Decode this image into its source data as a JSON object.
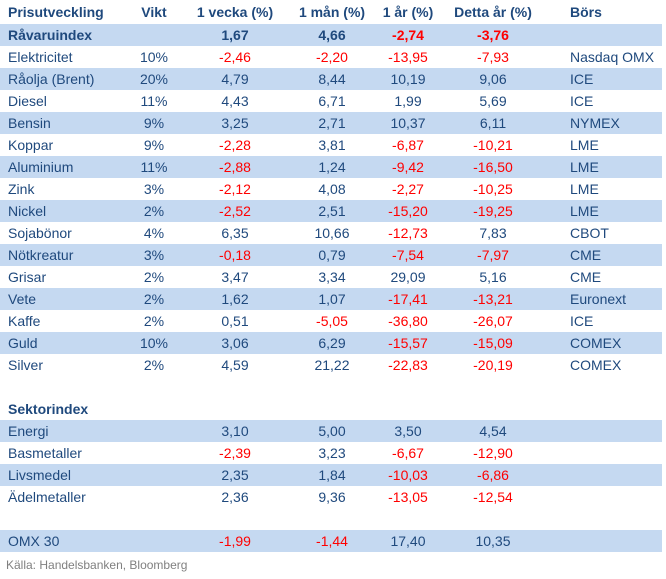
{
  "chart_data": {
    "type": "table",
    "title": "Prisutveckling",
    "columns": [
      "Prisutveckling",
      "Vikt",
      "1 vecka (%)",
      "1 mån (%)",
      "1 år (%)",
      "Detta år (%)",
      "Börs"
    ],
    "rows": [
      {
        "type": "data",
        "label": "Råvaruindex",
        "weight": "",
        "week": "1,67",
        "month": "4,66",
        "year": "-2,74",
        "ytd": "-3,76",
        "exchange": "",
        "shade": true,
        "bold": true
      },
      {
        "type": "data",
        "label": "Elektricitet",
        "weight": "10%",
        "week": "-2,46",
        "month": "-2,20",
        "year": "-13,95",
        "ytd": "-7,93",
        "exchange": "Nasdaq OMX",
        "shade": false,
        "bold": false
      },
      {
        "type": "data",
        "label": "Råolja (Brent)",
        "weight": "20%",
        "week": "4,79",
        "month": "8,44",
        "year": "10,19",
        "ytd": "9,06",
        "exchange": "ICE",
        "shade": true,
        "bold": false
      },
      {
        "type": "data",
        "label": "Diesel",
        "weight": "11%",
        "week": "4,43",
        "month": "6,71",
        "year": "1,99",
        "ytd": "5,69",
        "exchange": "ICE",
        "shade": false,
        "bold": false
      },
      {
        "type": "data",
        "label": "Bensin",
        "weight": "9%",
        "week": "3,25",
        "month": "2,71",
        "year": "10,37",
        "ytd": "6,11",
        "exchange": "NYMEX",
        "shade": true,
        "bold": false
      },
      {
        "type": "data",
        "label": "Koppar",
        "weight": "9%",
        "week": "-2,28",
        "month": "3,81",
        "year": "-6,87",
        "ytd": "-10,21",
        "exchange": "LME",
        "shade": false,
        "bold": false
      },
      {
        "type": "data",
        "label": "Aluminium",
        "weight": "11%",
        "week": "-2,88",
        "month": "1,24",
        "year": "-9,42",
        "ytd": "-16,50",
        "exchange": "LME",
        "shade": true,
        "bold": false
      },
      {
        "type": "data",
        "label": "Zink",
        "weight": "3%",
        "week": "-2,12",
        "month": "4,08",
        "year": "-2,27",
        "ytd": "-10,25",
        "exchange": "LME",
        "shade": false,
        "bold": false
      },
      {
        "type": "data",
        "label": "Nickel",
        "weight": "2%",
        "week": "-2,52",
        "month": "2,51",
        "year": "-15,20",
        "ytd": "-19,25",
        "exchange": "LME",
        "shade": true,
        "bold": false
      },
      {
        "type": "data",
        "label": "Sojabönor",
        "weight": "4%",
        "week": "6,35",
        "month": "10,66",
        "year": "-12,73",
        "ytd": "7,83",
        "exchange": "CBOT",
        "shade": false,
        "bold": false
      },
      {
        "type": "data",
        "label": "Nötkreatur",
        "weight": "3%",
        "week": "-0,18",
        "month": "0,79",
        "year": "-7,54",
        "ytd": "-7,97",
        "exchange": "CME",
        "shade": true,
        "bold": false
      },
      {
        "type": "data",
        "label": "Grisar",
        "weight": "2%",
        "week": "3,47",
        "month": "3,34",
        "year": "29,09",
        "ytd": "5,16",
        "exchange": "CME",
        "shade": false,
        "bold": false
      },
      {
        "type": "data",
        "label": "Vete",
        "weight": "2%",
        "week": "1,62",
        "month": "1,07",
        "year": "-17,41",
        "ytd": "-13,21",
        "exchange": "Euronext",
        "shade": true,
        "bold": false
      },
      {
        "type": "data",
        "label": "Kaffe",
        "weight": "2%",
        "week": "0,51",
        "month": "-5,05",
        "year": "-36,80",
        "ytd": "-26,07",
        "exchange": "ICE",
        "shade": false,
        "bold": false
      },
      {
        "type": "data",
        "label": "Guld",
        "weight": "10%",
        "week": "3,06",
        "month": "6,29",
        "year": "-15,57",
        "ytd": "-15,09",
        "exchange": "COMEX",
        "shade": true,
        "bold": false
      },
      {
        "type": "data",
        "label": "Silver",
        "weight": "2%",
        "week": "4,59",
        "month": "21,22",
        "year": "-22,83",
        "ytd": "-20,19",
        "exchange": "COMEX",
        "shade": false,
        "bold": false
      },
      {
        "type": "spacer"
      },
      {
        "type": "section",
        "label": "Sektorindex",
        "weight": "",
        "week": "",
        "month": "",
        "year": "",
        "ytd": "",
        "exchange": "",
        "shade": false,
        "bold": true
      },
      {
        "type": "data",
        "label": "Energi",
        "weight": "",
        "week": "3,10",
        "month": "5,00",
        "year": "3,50",
        "ytd": "4,54",
        "exchange": "",
        "shade": true,
        "bold": false
      },
      {
        "type": "data",
        "label": "Basmetaller",
        "weight": "",
        "week": "-2,39",
        "month": "3,23",
        "year": "-6,67",
        "ytd": "-12,90",
        "exchange": "",
        "shade": false,
        "bold": false
      },
      {
        "type": "data",
        "label": "Livsmedel",
        "weight": "",
        "week": "2,35",
        "month": "1,84",
        "year": "-10,03",
        "ytd": "-6,86",
        "exchange": "",
        "shade": true,
        "bold": false
      },
      {
        "type": "data",
        "label": "Ädelmetaller",
        "weight": "",
        "week": "2,36",
        "month": "9,36",
        "year": "-13,05",
        "ytd": "-12,54",
        "exchange": "",
        "shade": false,
        "bold": false
      },
      {
        "type": "spacer"
      },
      {
        "type": "data",
        "label": "OMX 30",
        "weight": "",
        "week": "-1,99",
        "month": "-1,44",
        "year": "17,40",
        "ytd": "10,35",
        "exchange": "",
        "shade": true,
        "bold": false
      }
    ]
  },
  "footer": {
    "source": "Källa: Handelsbanken, Bloomberg"
  },
  "colors": {
    "text": "#1F497D",
    "negative": "#FF0000",
    "row_shade": "#C5D9F1",
    "background": "#FFFFFF",
    "source_text": "#808080"
  }
}
